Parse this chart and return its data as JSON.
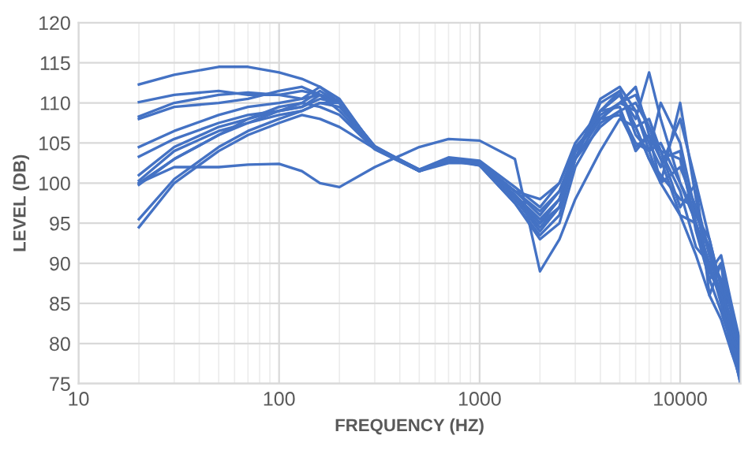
{
  "chart_data": {
    "type": "line",
    "xlabel": "FREQUENCY (HZ)",
    "ylabel": "LEVEL (DB)",
    "log": "x",
    "grid": true,
    "marker": "none",
    "line_style": "solid",
    "legend": false,
    "x": [
      20,
      30,
      50,
      70,
      100,
      130,
      160,
      200,
      300,
      500,
      700,
      1000,
      1500,
      2000,
      2500,
      3000,
      4000,
      5000,
      6000,
      7000,
      8000,
      10000,
      12000,
      14000,
      16000,
      18000,
      20000
    ],
    "xlim": [
      10,
      20000
    ],
    "xticks": [
      10,
      100,
      1000,
      10000
    ],
    "ylim": [
      75,
      120
    ],
    "yticks": [
      75,
      80,
      85,
      90,
      95,
      100,
      105,
      110,
      115,
      120
    ],
    "series": [
      {
        "color": "#4472c4",
        "values": [
          112.3,
          113.5,
          114.5,
          114.5,
          113.8,
          113,
          112,
          110,
          104.5,
          101.5,
          102.5,
          102.5,
          99,
          96,
          99,
          104,
          109,
          111,
          108,
          113.8,
          108,
          100,
          95,
          90,
          88,
          82,
          76
        ]
      },
      {
        "color": "#4472c4",
        "values": [
          110.1,
          111,
          111.5,
          111,
          111,
          111.5,
          111,
          110,
          104.5,
          101.7,
          102.8,
          102.3,
          98.5,
          95,
          98,
          103,
          110,
          111.5,
          106,
          104,
          110,
          105,
          96,
          92,
          85,
          80,
          78
        ]
      },
      {
        "color": "#4472c4",
        "values": [
          108.3,
          110,
          111,
          111.3,
          111,
          110.5,
          112,
          110.5,
          104.3,
          101.5,
          103,
          102.5,
          98,
          94,
          97,
          104,
          108,
          110,
          112,
          106,
          100,
          110,
          98,
          91,
          88,
          84,
          79
        ]
      },
      {
        "color": "#4472c4",
        "values": [
          108,
          109.5,
          110,
          110.5,
          111.5,
          112,
          111,
          109,
          104.3,
          101.6,
          103,
          102.2,
          97.5,
          93.5,
          96,
          103,
          110.5,
          112,
          109,
          105,
          102,
          108,
          100,
          86,
          90,
          80,
          75
        ]
      },
      {
        "color": "#4472c4",
        "values": [
          104.5,
          106.5,
          108.5,
          109.5,
          110,
          110.5,
          111,
          110,
          104.5,
          101.5,
          103,
          102.5,
          98.5,
          95.5,
          98,
          104,
          108.5,
          110,
          109,
          104,
          105,
          100,
          96,
          93,
          87,
          83,
          77
        ]
      },
      {
        "color": "#4472c4",
        "values": [
          103.3,
          105.5,
          107.5,
          108.5,
          109,
          109.5,
          110.5,
          110,
          104.5,
          101.5,
          102.8,
          102.3,
          98,
          94.5,
          97,
          103,
          108,
          110,
          111,
          107,
          103,
          104,
          94,
          88,
          90,
          84,
          78
        ]
      },
      {
        "color": "#4472c4",
        "values": [
          101,
          104.5,
          107,
          108,
          109,
          109.5,
          111,
          110.3,
          104.4,
          101.5,
          103,
          102.6,
          99,
          96.5,
          99,
          104,
          109,
          111.5,
          107,
          103,
          101,
          98,
          97,
          91,
          86,
          79,
          76
        ]
      },
      {
        "color": "#4472c4",
        "values": [
          100.3,
          104,
          106.5,
          107.5,
          108.5,
          109,
          110,
          109.5,
          104.5,
          101.7,
          103.2,
          102.8,
          99.5,
          97,
          100,
          105,
          109,
          109.5,
          104,
          106,
          103,
          96,
          95,
          89,
          91,
          85,
          80
        ]
      },
      {
        "color": "#4472c4",
        "values": [
          100,
          103,
          106,
          107.5,
          109,
          110,
          111.5,
          110,
          104.6,
          101.5,
          102.8,
          102.5,
          99,
          98,
          100,
          104.5,
          108,
          108.5,
          104.5,
          106,
          104,
          97,
          100,
          93,
          87,
          82,
          78
        ]
      },
      {
        "color": "#4472c4",
        "values": [
          99.8,
          103,
          106,
          108,
          109.5,
          110,
          109.5,
          108.5,
          104.2,
          101.5,
          103,
          102.5,
          98,
          95,
          98,
          104,
          109,
          111,
          107,
          108,
          104,
          103,
          95,
          88,
          84,
          80,
          75
        ]
      },
      {
        "color": "#4472c4",
        "values": [
          95.5,
          100.5,
          104.5,
          106.5,
          108,
          109,
          110,
          110,
          104.6,
          101.6,
          103,
          102.5,
          98.5,
          95,
          97,
          103,
          107,
          109,
          105,
          104,
          100,
          102,
          97,
          89,
          86,
          81,
          77
        ]
      },
      {
        "color": "#4472c4",
        "values": [
          94.5,
          100,
          104,
          106,
          107.5,
          108.5,
          108,
          107,
          104.3,
          101.6,
          102.8,
          102.2,
          97.5,
          93,
          95,
          102,
          107.5,
          109,
          110,
          107,
          104,
          99,
          92,
          90,
          85,
          80,
          77
        ]
      },
      {
        "color": "#4472c4",
        "values": [
          100,
          102,
          102,
          102.3,
          102.4,
          101.5,
          100,
          99.5,
          102,
          104.5,
          105.5,
          105.3,
          103,
          89,
          93,
          98,
          104,
          108,
          107,
          103,
          100,
          96,
          91,
          86,
          83,
          79,
          75.5
        ]
      }
    ]
  }
}
